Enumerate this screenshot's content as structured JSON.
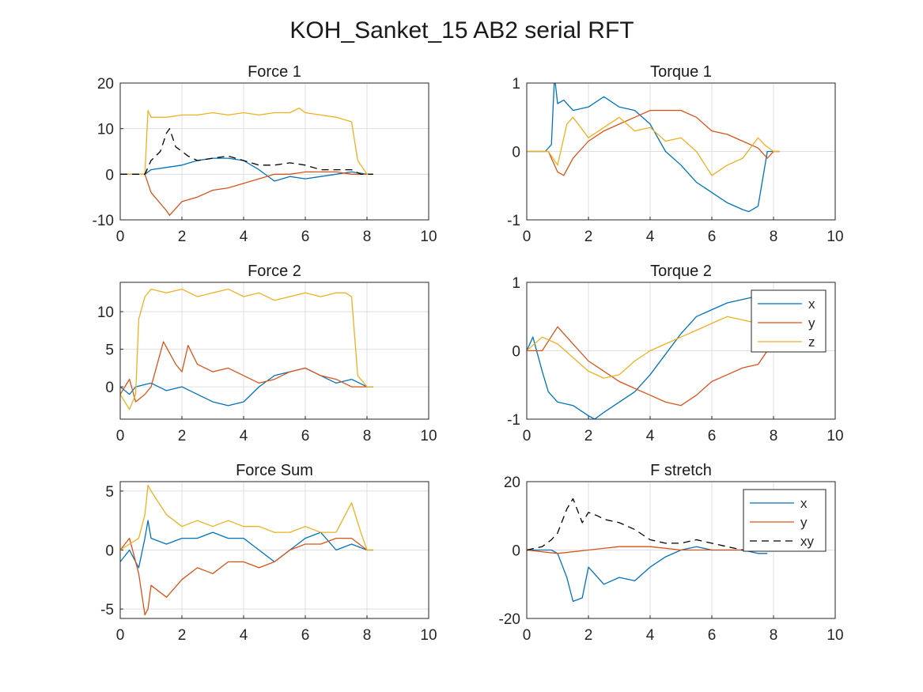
{
  "figure": {
    "title": "KOH_Sanket_15 AB2 serial RFT"
  },
  "colors": {
    "x": "#0072BD",
    "y": "#D95319",
    "z": "#EDB120",
    "xy": "#000000"
  },
  "chart_data": [
    {
      "type": "line",
      "title": "Force 1",
      "xlim": [
        0,
        10
      ],
      "ylim": [
        -10,
        20
      ],
      "xticks": [
        "0",
        "2",
        "4",
        "6",
        "8",
        "10"
      ],
      "yticks": [
        "-10",
        "0",
        "10",
        "20"
      ],
      "ytick_values": [
        -10,
        0,
        10,
        20
      ],
      "grid": true,
      "series": [
        {
          "key": "x",
          "x": [
            0,
            0.8,
            1.0,
            1.5,
            2.0,
            2.5,
            3.0,
            3.5,
            4.0,
            4.5,
            5.0,
            5.5,
            6.0,
            6.5,
            7.0,
            7.5,
            8.0,
            8.2
          ],
          "y": [
            0,
            0,
            1,
            1.5,
            2,
            3,
            3.5,
            3.5,
            3,
            1,
            -1.5,
            -0.5,
            -1,
            -0.5,
            0,
            0.5,
            0,
            0
          ]
        },
        {
          "key": "y",
          "x": [
            0,
            0.8,
            1.0,
            1.5,
            1.6,
            2.0,
            2.5,
            3.0,
            3.5,
            4.0,
            4.5,
            5.0,
            5.5,
            6.0,
            6.5,
            7.0,
            7.5,
            8.0,
            8.2
          ],
          "y": [
            0,
            0,
            -4,
            -8,
            -9,
            -6,
            -5,
            -3.5,
            -3,
            -2,
            -1,
            0,
            0,
            0.5,
            0.5,
            0.5,
            0,
            0,
            0
          ]
        },
        {
          "key": "z",
          "x": [
            0,
            0.8,
            0.9,
            1.0,
            1.5,
            2.0,
            2.5,
            3.0,
            3.5,
            4.0,
            4.5,
            5.0,
            5.5,
            5.8,
            6.0,
            6.5,
            7.0,
            7.5,
            7.7,
            8.0,
            8.2
          ],
          "y": [
            0,
            0,
            14,
            12.5,
            12.5,
            13,
            13,
            13.5,
            13,
            13.5,
            13,
            13.5,
            13.5,
            14.5,
            13.5,
            13,
            12.5,
            11.5,
            3,
            0,
            0
          ]
        },
        {
          "key": "xy",
          "dashed": true,
          "x": [
            0,
            0.8,
            1.0,
            1.3,
            1.5,
            1.6,
            1.8,
            2.0,
            2.2,
            2.5,
            3.0,
            3.5,
            4.0,
            4.5,
            5.0,
            5.5,
            6.0,
            6.5,
            7.0,
            7.5,
            7.8,
            8.0,
            8.2
          ],
          "y": [
            0,
            0,
            3,
            5,
            9,
            10,
            6,
            5,
            4,
            3,
            3.5,
            4,
            3,
            2,
            2,
            2.5,
            2,
            1,
            1,
            1,
            0,
            0,
            0
          ]
        }
      ]
    },
    {
      "type": "line",
      "title": "Torque 1",
      "xlim": [
        0,
        10
      ],
      "ylim": [
        -1,
        1
      ],
      "xticks": [
        "0",
        "2",
        "4",
        "6",
        "8",
        "10"
      ],
      "yticks": [
        "-1",
        "0",
        "1"
      ],
      "ytick_values": [
        -1,
        0,
        1
      ],
      "grid": true,
      "series": [
        {
          "key": "x",
          "x": [
            0,
            0.6,
            0.8,
            0.9,
            1.0,
            1.2,
            1.5,
            2.0,
            2.5,
            3.0,
            3.5,
            4.0,
            4.5,
            5.0,
            5.5,
            6.0,
            6.5,
            7.0,
            7.2,
            7.5,
            7.8,
            8.0,
            8.2
          ],
          "y": [
            0,
            0,
            0.1,
            1.1,
            0.7,
            0.75,
            0.6,
            0.65,
            0.8,
            0.65,
            0.6,
            0.4,
            0,
            -0.2,
            -0.45,
            -0.6,
            -0.75,
            -0.85,
            -0.88,
            -0.8,
            0,
            0,
            0
          ]
        },
        {
          "key": "y",
          "x": [
            0,
            0.7,
            1.0,
            1.2,
            1.5,
            2.0,
            2.5,
            3.0,
            3.5,
            4.0,
            4.5,
            5.0,
            5.5,
            6.0,
            6.5,
            7.0,
            7.5,
            7.8,
            8.0,
            8.2
          ],
          "y": [
            0,
            0,
            -0.3,
            -0.35,
            -0.1,
            0.15,
            0.3,
            0.4,
            0.5,
            0.6,
            0.6,
            0.6,
            0.5,
            0.3,
            0.25,
            0.15,
            0.05,
            -0.1,
            0,
            0
          ]
        },
        {
          "key": "z",
          "x": [
            0,
            0.7,
            1.0,
            1.3,
            1.5,
            2.0,
            2.5,
            3.0,
            3.5,
            4.0,
            4.5,
            5.0,
            5.5,
            6.0,
            6.5,
            7.0,
            7.5,
            7.7,
            8.0,
            8.2
          ],
          "y": [
            0,
            0,
            -0.2,
            0.4,
            0.5,
            0.2,
            0.35,
            0.5,
            0.3,
            0.35,
            0.15,
            0.2,
            0,
            -0.35,
            -0.2,
            -0.1,
            0.2,
            0.1,
            0,
            0
          ]
        }
      ]
    },
    {
      "type": "line",
      "title": "Force 2",
      "xlim": [
        0,
        10
      ],
      "ylim": [
        -4.3,
        13.9
      ],
      "xticks": [
        "0",
        "2",
        "4",
        "6",
        "8",
        "10"
      ],
      "yticks": [
        "0",
        "5",
        "10"
      ],
      "ytick_values": [
        0,
        5,
        10
      ],
      "grid": true,
      "series": [
        {
          "key": "x",
          "x": [
            0,
            0.3,
            0.5,
            1.0,
            1.5,
            2.0,
            2.5,
            3.0,
            3.5,
            4.0,
            4.5,
            5.0,
            5.5,
            6.0,
            6.5,
            7.0,
            7.5,
            8.0,
            8.2
          ],
          "y": [
            0,
            -1,
            0,
            0.5,
            -0.5,
            0,
            -1,
            -2,
            -2.5,
            -2,
            0,
            1.5,
            2,
            2.5,
            1.5,
            0.5,
            1,
            0,
            0
          ]
        },
        {
          "key": "y",
          "x": [
            0,
            0.3,
            0.5,
            0.8,
            1.0,
            1.4,
            1.8,
            2.0,
            2.2,
            2.5,
            3.0,
            3.5,
            4.0,
            4.5,
            5.0,
            5.5,
            6.0,
            6.5,
            7.0,
            7.5,
            8.0,
            8.2
          ],
          "y": [
            -1,
            1,
            -2,
            -1,
            0,
            6,
            3,
            2,
            5.5,
            3,
            2,
            2.5,
            1.5,
            0.5,
            1,
            2,
            2.5,
            1.5,
            1,
            0,
            0,
            0
          ]
        },
        {
          "key": "z",
          "x": [
            0,
            0.3,
            0.5,
            0.6,
            0.8,
            1.0,
            1.5,
            2.0,
            2.5,
            3.0,
            3.5,
            4.0,
            4.5,
            5.0,
            5.5,
            6.0,
            6.5,
            7.0,
            7.3,
            7.5,
            7.7,
            8.0,
            8.2
          ],
          "y": [
            -1,
            -3,
            -1,
            9,
            12,
            13,
            12.5,
            13,
            12,
            12.5,
            13,
            12,
            12.5,
            11.5,
            12,
            12.5,
            12,
            12.5,
            12.5,
            12,
            1.5,
            0,
            0
          ]
        }
      ]
    },
    {
      "type": "line",
      "title": "Torque 2",
      "xlim": [
        0,
        10
      ],
      "ylim": [
        -1,
        1
      ],
      "xticks": [
        "0",
        "2",
        "4",
        "6",
        "8",
        "10"
      ],
      "yticks": [
        "-1",
        "0",
        "1"
      ],
      "ytick_values": [
        -1,
        0,
        1
      ],
      "grid": true,
      "legend": {
        "placement": "top-right",
        "entries": [
          "x",
          "y",
          "z"
        ]
      },
      "series": [
        {
          "key": "x",
          "x": [
            0,
            0.2,
            0.5,
            0.7,
            1.0,
            1.5,
            2.0,
            2.2,
            2.5,
            3.0,
            3.5,
            4.0,
            4.5,
            5.0,
            5.5,
            6.0,
            6.5,
            7.0,
            7.5
          ],
          "y": [
            0,
            0.2,
            -0.3,
            -0.6,
            -0.75,
            -0.8,
            -0.95,
            -1,
            -0.9,
            -0.75,
            -0.6,
            -0.35,
            -0.05,
            0.25,
            0.5,
            0.6,
            0.7,
            0.75,
            0.8
          ]
        },
        {
          "key": "y",
          "x": [
            0,
            0.5,
            1.0,
            1.5,
            2.0,
            2.5,
            3.0,
            3.5,
            4.0,
            4.5,
            5.0,
            5.5,
            6.0,
            6.5,
            7.0,
            7.5,
            7.8
          ],
          "y": [
            0,
            0,
            0.35,
            0.1,
            -0.15,
            -0.3,
            -0.45,
            -0.55,
            -0.65,
            -0.75,
            -0.8,
            -0.65,
            -0.45,
            -0.35,
            -0.25,
            -0.2,
            0
          ]
        },
        {
          "key": "z",
          "x": [
            0,
            0.5,
            1.0,
            1.5,
            2.0,
            2.5,
            3.0,
            3.5,
            4.0,
            4.5,
            5.0,
            5.5,
            6.0,
            6.5,
            7.0,
            7.5
          ],
          "y": [
            0,
            0.2,
            0.1,
            -0.1,
            -0.3,
            -0.4,
            -0.35,
            -0.15,
            0,
            0.1,
            0.2,
            0.3,
            0.4,
            0.5,
            0.45,
            0.4
          ]
        }
      ]
    },
    {
      "type": "line",
      "title": "Force Sum",
      "xlim": [
        0,
        10
      ],
      "ylim": [
        -5.8,
        5.8
      ],
      "xticks": [
        "0",
        "2",
        "4",
        "6",
        "8",
        "10"
      ],
      "yticks": [
        "-5",
        "0",
        "5"
      ],
      "ytick_values": [
        -5,
        0,
        5
      ],
      "grid": true,
      "series": [
        {
          "key": "x",
          "x": [
            0,
            0.3,
            0.6,
            0.8,
            0.9,
            1.0,
            1.5,
            2.0,
            2.5,
            3.0,
            3.5,
            4.0,
            4.5,
            5.0,
            5.5,
            6.0,
            6.5,
            7.0,
            7.5,
            8.0,
            8.2
          ],
          "y": [
            -1,
            0,
            -1.5,
            1,
            2.5,
            1,
            0.5,
            1,
            1,
            1.5,
            1,
            1,
            0,
            -1,
            0,
            1,
            1.5,
            0,
            0.5,
            0,
            0
          ]
        },
        {
          "key": "y",
          "x": [
            0,
            0.3,
            0.6,
            0.8,
            0.9,
            1.0,
            1.5,
            2.0,
            2.5,
            3.0,
            3.5,
            4.0,
            4.5,
            5.0,
            5.5,
            6.0,
            6.5,
            7.0,
            7.5,
            8.0,
            8.2
          ],
          "y": [
            0,
            1,
            -2,
            -5.5,
            -5,
            -3,
            -4,
            -2.5,
            -1.5,
            -2,
            -1,
            -1,
            -1.5,
            -1,
            0,
            0.5,
            0.5,
            1,
            1,
            0,
            0
          ]
        },
        {
          "key": "z",
          "x": [
            0,
            0.3,
            0.6,
            0.8,
            0.9,
            1.0,
            1.5,
            2.0,
            2.5,
            3.0,
            3.5,
            4.0,
            4.5,
            5.0,
            5.5,
            6.0,
            6.5,
            7.0,
            7.5,
            7.8,
            8.0,
            8.2
          ],
          "y": [
            0,
            0.5,
            1,
            3,
            5.5,
            5,
            3,
            2,
            2.5,
            2,
            2.5,
            2,
            2,
            1.5,
            1.5,
            2,
            1.5,
            1.5,
            4,
            1.5,
            0,
            0
          ]
        }
      ]
    },
    {
      "type": "line",
      "title": "F stretch",
      "xlim": [
        0,
        10
      ],
      "ylim": [
        -20,
        20
      ],
      "xticks": [
        "0",
        "2",
        "4",
        "6",
        "8",
        "10"
      ],
      "yticks": [
        "-20",
        "0",
        "20"
      ],
      "ytick_values": [
        -20,
        0,
        20
      ],
      "grid": true,
      "legend": {
        "placement": "top-right",
        "entries": [
          "x",
          "y",
          "xy"
        ]
      },
      "series": [
        {
          "key": "x",
          "x": [
            0,
            0.8,
            1.0,
            1.3,
            1.5,
            1.8,
            2.0,
            2.5,
            3.0,
            3.5,
            4.0,
            4.5,
            5.0,
            5.5,
            6.0,
            6.5,
            7.0,
            7.5,
            7.8
          ],
          "y": [
            0,
            0,
            -1,
            -8,
            -15,
            -14,
            -5,
            -10,
            -8,
            -9,
            -5,
            -2,
            0,
            1,
            0,
            0,
            0,
            -1,
            -1
          ]
        },
        {
          "key": "y",
          "x": [
            0,
            1.0,
            2.0,
            3.0,
            4.0,
            5.0,
            6.0,
            7.0,
            7.8
          ],
          "y": [
            0,
            -1,
            0,
            1,
            1,
            0,
            0,
            0,
            0
          ]
        },
        {
          "key": "xy",
          "dashed": true,
          "x": [
            0,
            0.5,
            0.8,
            1.0,
            1.3,
            1.5,
            1.8,
            2.0,
            2.3,
            2.5,
            3.0,
            3.5,
            4.0,
            4.5,
            5.0,
            5.5,
            6.0,
            6.5,
            7.0,
            7.3
          ],
          "y": [
            0,
            1,
            3,
            5,
            12,
            15,
            8,
            11,
            10,
            9,
            8,
            6,
            3,
            2,
            2,
            3,
            2,
            1,
            0,
            0
          ]
        }
      ]
    }
  ]
}
